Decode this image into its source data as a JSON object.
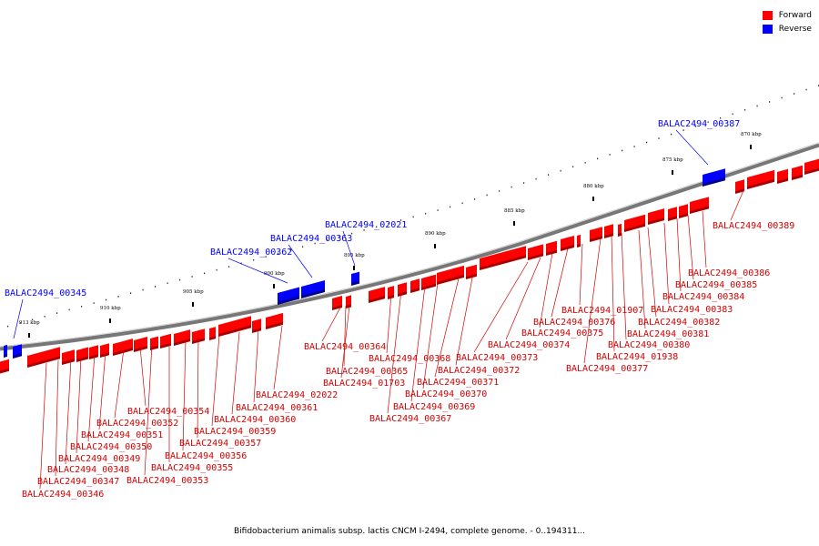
{
  "legend": {
    "forward_label": "Forward",
    "reverse_label": "Reverse",
    "forward_color": "#ff0000",
    "reverse_color": "#0000ff"
  },
  "caption": "Bifidobacterium animalis subsp. lactis CNCM I-2494, complete genome. - 0..194311...",
  "scale_labels": [
    "870 kbp",
    "875 kbp",
    "880 kbp",
    "885 kbp",
    "890 kbp",
    "895 kbp",
    "900 kbp",
    "905 kbp",
    "910 kbp",
    "913 kbp"
  ],
  "reverse_genes": [
    "BALAC2494_00387",
    "BALAC2494_02021",
    "BALAC2494_00363",
    "BALAC2494_00362",
    "BALAC2494_00345"
  ],
  "forward_genes": [
    "BALAC2494_00389",
    "BALAC2494_00386",
    "BALAC2494_00385",
    "BALAC2494_00384",
    "BALAC2494_00383",
    "BALAC2494_00382",
    "BALAC2494_00381",
    "BALAC2494_00380",
    "BALAC2494_01938",
    "BALAC2494_00377",
    "BALAC2494_01907",
    "BALAC2494_00376",
    "BALAC2494_00375",
    "BALAC2494_00374",
    "BALAC2494_00373",
    "BALAC2494_00372",
    "BALAC2494_00371",
    "BALAC2494_00370",
    "BALAC2494_00369",
    "BALAC2494_00367",
    "BALAC2494_00368",
    "BALAC2494_00364",
    "BALAC2494_00365",
    "BALAC2494_01703",
    "BALAC2494_02022",
    "BALAC2494_00361",
    "BALAC2494_00360",
    "BALAC2494_00359",
    "BALAC2494_00357",
    "BALAC2494_00356",
    "BALAC2494_00355",
    "BALAC2494_00353",
    "BALAC2494_00354",
    "BALAC2494_00352",
    "BALAC2494_00351",
    "BALAC2494_00350",
    "BALAC2494_00349",
    "BALAC2494_00348",
    "BALAC2494_00347",
    "BALAC2494_00346"
  ]
}
